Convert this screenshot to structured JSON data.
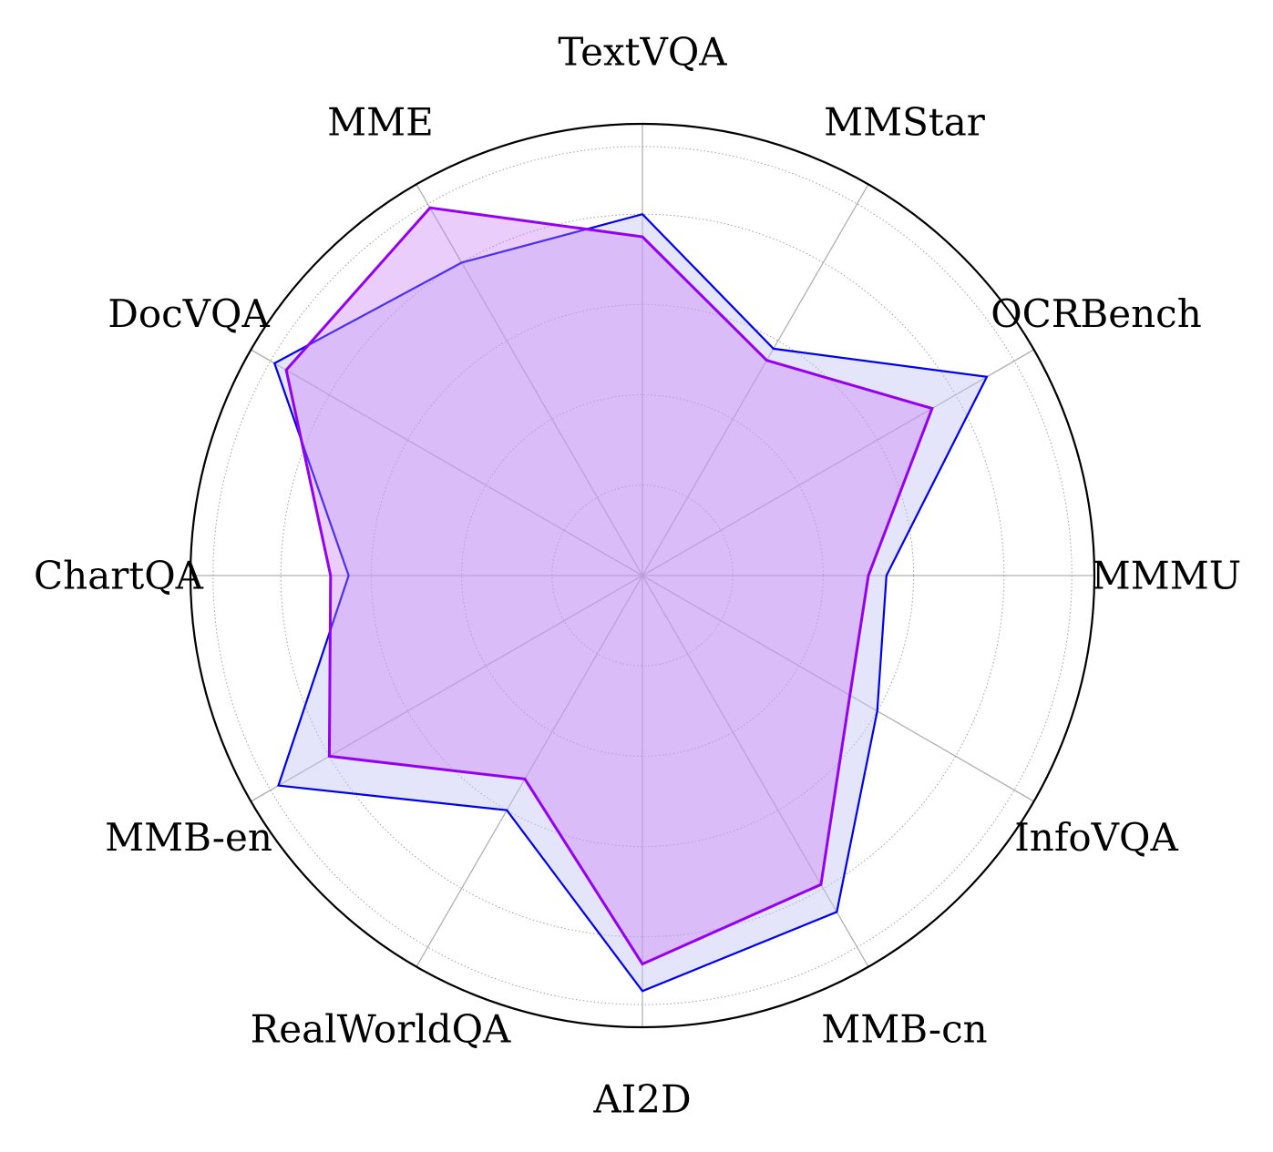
{
  "chart_data": {
    "type": "radar",
    "title": "",
    "axes": [
      "TextVQA",
      "MMStar",
      "OCRBench",
      "MMMU",
      "InfoVQA",
      "MMB-cn",
      "AI2D",
      "RealWorldQA",
      "MMB-en",
      "ChartQA",
      "DocVQA",
      "MME"
    ],
    "rlim": [
      0,
      1
    ],
    "grid_rings": [
      0.2,
      0.4,
      0.6,
      0.8,
      0.95
    ],
    "grid": true,
    "series": [
      {
        "values": [
          0.8,
          0.58,
          0.88,
          0.54,
          0.6,
          0.86,
          0.92,
          0.6,
          0.93,
          0.65,
          0.94,
          0.8
        ],
        "color": "#0000ee",
        "fill": "#c4c4f5",
        "fill_opacity": 0.45
      },
      {
        "values": [
          0.75,
          0.55,
          0.74,
          0.5,
          0.53,
          0.79,
          0.86,
          0.52,
          0.8,
          0.69,
          0.91,
          0.94
        ],
        "color": "#9400f0",
        "fill": "#c77cf5",
        "fill_opacity": 0.38
      }
    ]
  }
}
